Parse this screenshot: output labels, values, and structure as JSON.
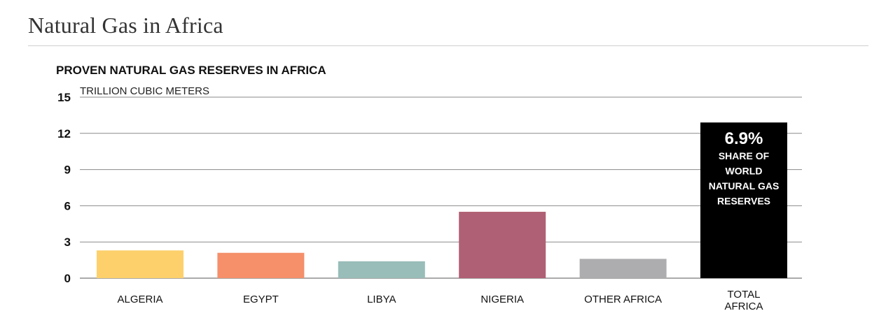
{
  "page": {
    "title": "Natural Gas in Africa"
  },
  "chart_data": {
    "type": "bar",
    "title": "PROVEN NATURAL GAS RESERVES IN AFRICA",
    "ylabel": "TRILLION CUBIC METERS",
    "xlabel": "",
    "ylim": [
      0,
      15
    ],
    "yticks": [
      0,
      3,
      6,
      9,
      12,
      15
    ],
    "grid": true,
    "categories": [
      "ALGERIA",
      "EGYPT",
      "LIBYA",
      "NIGERIA",
      "OTHER AFRICA",
      "TOTAL AFRICA"
    ],
    "category_lines": [
      [
        "ALGERIA"
      ],
      [
        "EGYPT"
      ],
      [
        "LIBYA"
      ],
      [
        "NIGERIA"
      ],
      [
        "OTHER AFRICA"
      ],
      [
        "TOTAL",
        "AFRICA"
      ]
    ],
    "values": [
      2.3,
      2.1,
      1.4,
      5.5,
      1.6,
      12.9
    ],
    "colors": [
      "#fdd06c",
      "#f5906b",
      "#99bdb9",
      "#b06074",
      "#adadb0",
      "#000000"
    ],
    "annotation": {
      "category": "TOTAL AFRICA",
      "value": "6.9%",
      "lines": [
        "SHARE OF",
        "WORLD",
        "NATURAL GAS",
        "RESERVES"
      ]
    }
  }
}
